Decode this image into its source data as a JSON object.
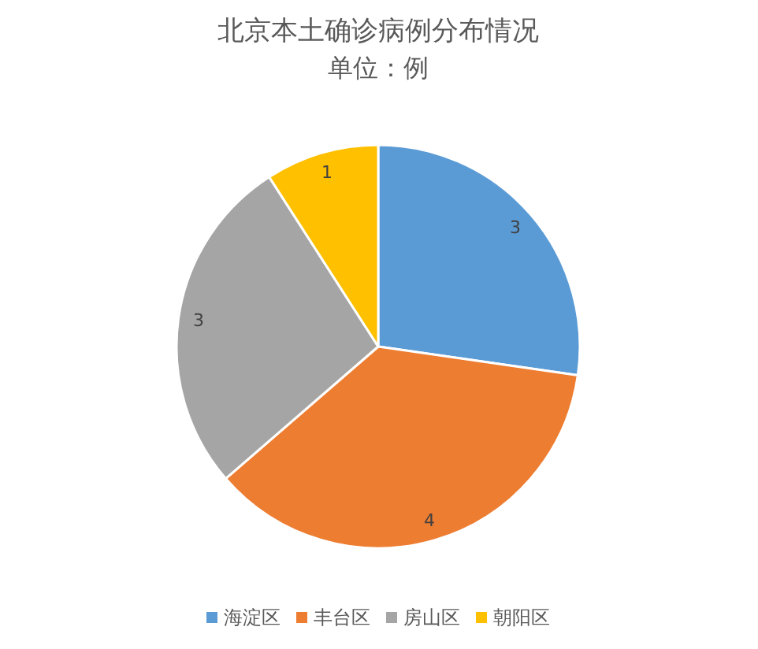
{
  "chart_data": {
    "type": "pie",
    "title": "北京本土确诊病例分布情况",
    "subtitle": "单位：例",
    "categories": [
      "海淀区",
      "丰台区",
      "房山区",
      "朝阳区"
    ],
    "values": [
      3,
      4,
      3,
      1
    ],
    "colors": [
      "#5b9bd5",
      "#ed7d31",
      "#a5a5a5",
      "#ffc000"
    ],
    "data_labels": true,
    "legend": "bottom"
  }
}
